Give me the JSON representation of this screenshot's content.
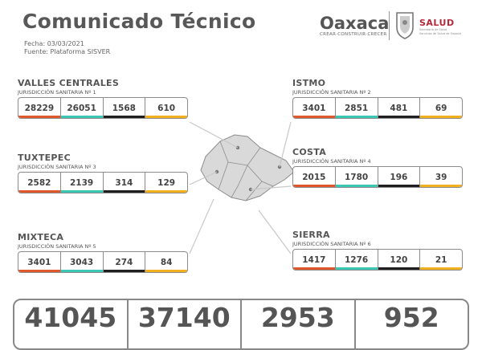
{
  "header": {
    "title": "Comunicado Técnico",
    "date_line": "Fecha: 03/03/2021",
    "source_line": "Fuente: Plataforma SISVER"
  },
  "logos": {
    "oaxaca_word": "Oaxaca",
    "oaxaca_tagline": "CREAR·CONSTRUIR·CRECER",
    "salud_word": "SALUD",
    "salud_sub_1": "Secretaría de Salud",
    "salud_sub_2": "Servicios de Salud de Oaxaca"
  },
  "colors": {
    "bar_1": "#e0572b",
    "bar_2": "#3cc6b4",
    "bar_3": "#1f1f1f",
    "bar_4": "#f2b01e",
    "map_fill": "#d9d9d9",
    "map_line": "#8c8c8c",
    "connector": "#c8c8c8"
  },
  "regions": [
    {
      "name": "VALLES CENTRALES",
      "sub": "JURISDICCIÓN SANITARIA Nº 1",
      "values": [
        "28229",
        "26051",
        "1568",
        "610"
      ]
    },
    {
      "name": "ISTMO",
      "sub": "JURISDICCIÓN SANITARIA Nº 2",
      "values": [
        "3401",
        "2851",
        "481",
        "69"
      ]
    },
    {
      "name": "TUXTEPEC",
      "sub": "JURISDICCIÓN SANITARIA Nº 3",
      "values": [
        "2582",
        "2139",
        "314",
        "129"
      ]
    },
    {
      "name": "COSTA",
      "sub": "JURISDICCIÓN SANITARIA Nº 4",
      "values": [
        "2015",
        "1780",
        "196",
        "39"
      ]
    },
    {
      "name": "MIXTECA",
      "sub": "JURISDICCIÓN SANITARIA Nº 5",
      "values": [
        "3401",
        "3043",
        "274",
        "84"
      ]
    },
    {
      "name": "SIERRA",
      "sub": "JURISDICCIÓN SANITARIA Nº 6",
      "values": [
        "1417",
        "1276",
        "120",
        "21"
      ]
    }
  ],
  "totals": [
    "41045",
    "37140",
    "2953",
    "952"
  ]
}
